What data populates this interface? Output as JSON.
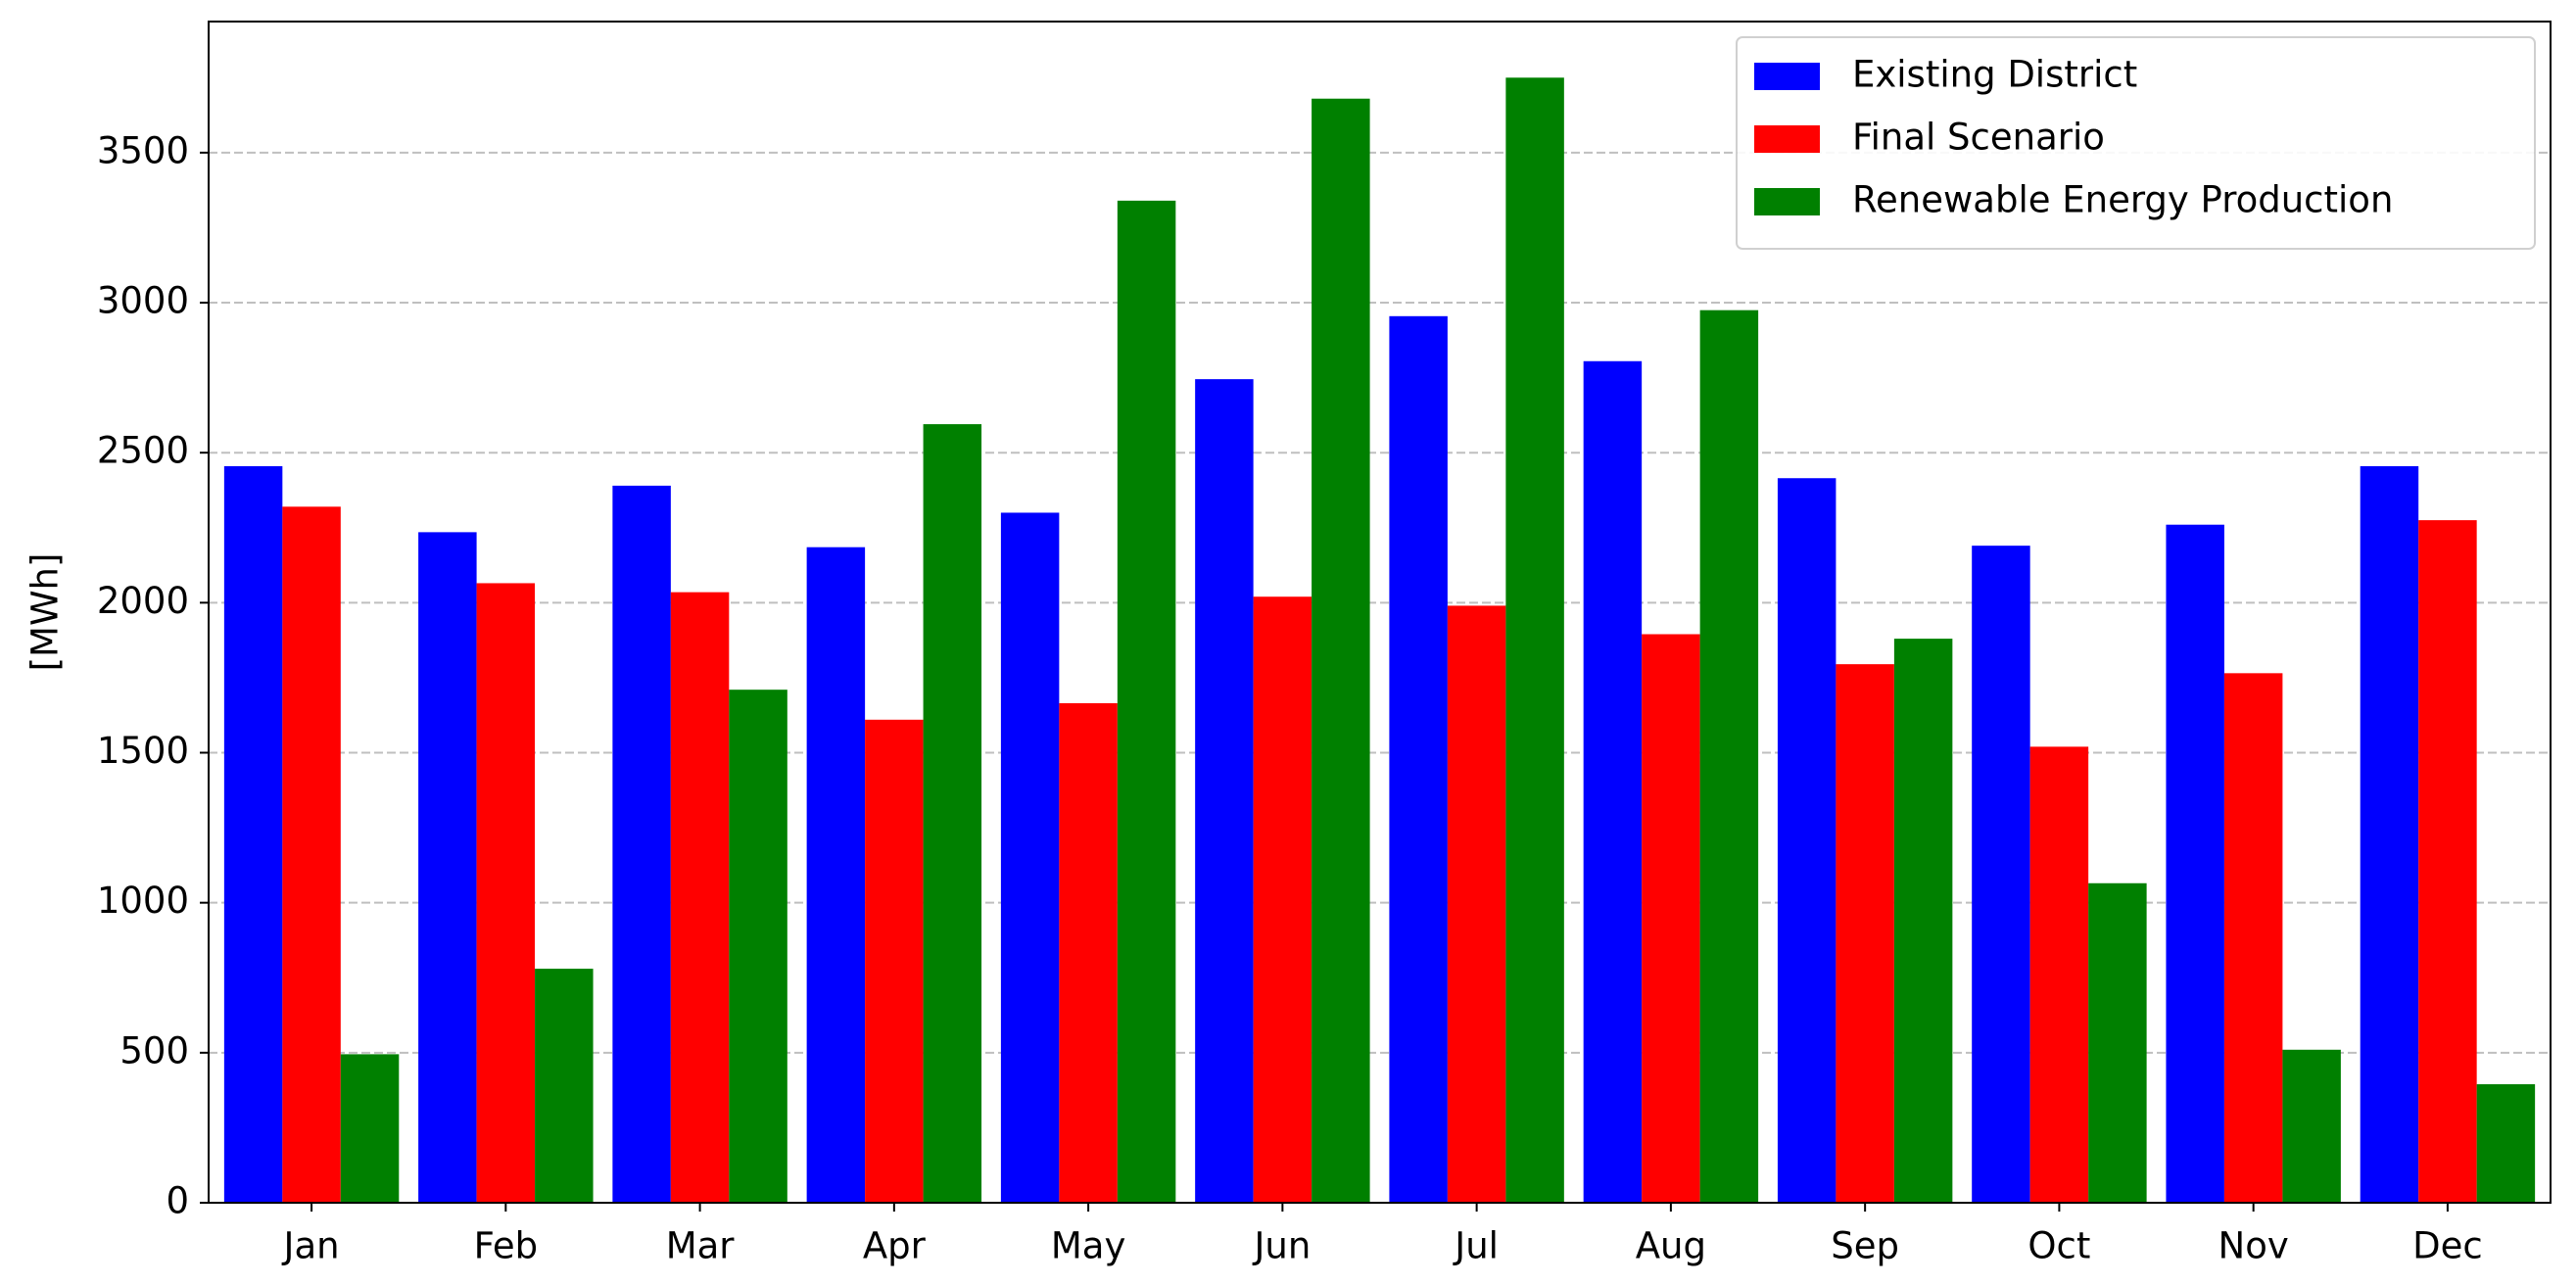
{
  "chart_data": {
    "type": "bar",
    "y_label": "[MWh]",
    "categories": [
      "Jan",
      "Feb",
      "Mar",
      "Apr",
      "May",
      "Jun",
      "Jul",
      "Aug",
      "Sep",
      "Oct",
      "Nov",
      "Dec"
    ],
    "series": [
      {
        "name": "Existing District",
        "color": "#0000ff",
        "values": [
          2455,
          2235,
          2390,
          2185,
          2300,
          2745,
          2955,
          2805,
          2415,
          2190,
          2260,
          2455
        ]
      },
      {
        "name": "Final Scenario",
        "color": "#ff0000",
        "values": [
          2320,
          2065,
          2035,
          1610,
          1665,
          2020,
          1990,
          1895,
          1795,
          1520,
          1765,
          2275
        ]
      },
      {
        "name": "Renewable Energy Production",
        "color": "#008000",
        "values": [
          495,
          780,
          1710,
          2595,
          3340,
          3680,
          3750,
          2975,
          1880,
          1065,
          510,
          395
        ]
      }
    ],
    "ylim": [
      0,
      3937
    ],
    "yticks": [
      0,
      500,
      1000,
      1500,
      2000,
      2500,
      3000,
      3500
    ],
    "grid": true,
    "legend": "upper-right"
  }
}
